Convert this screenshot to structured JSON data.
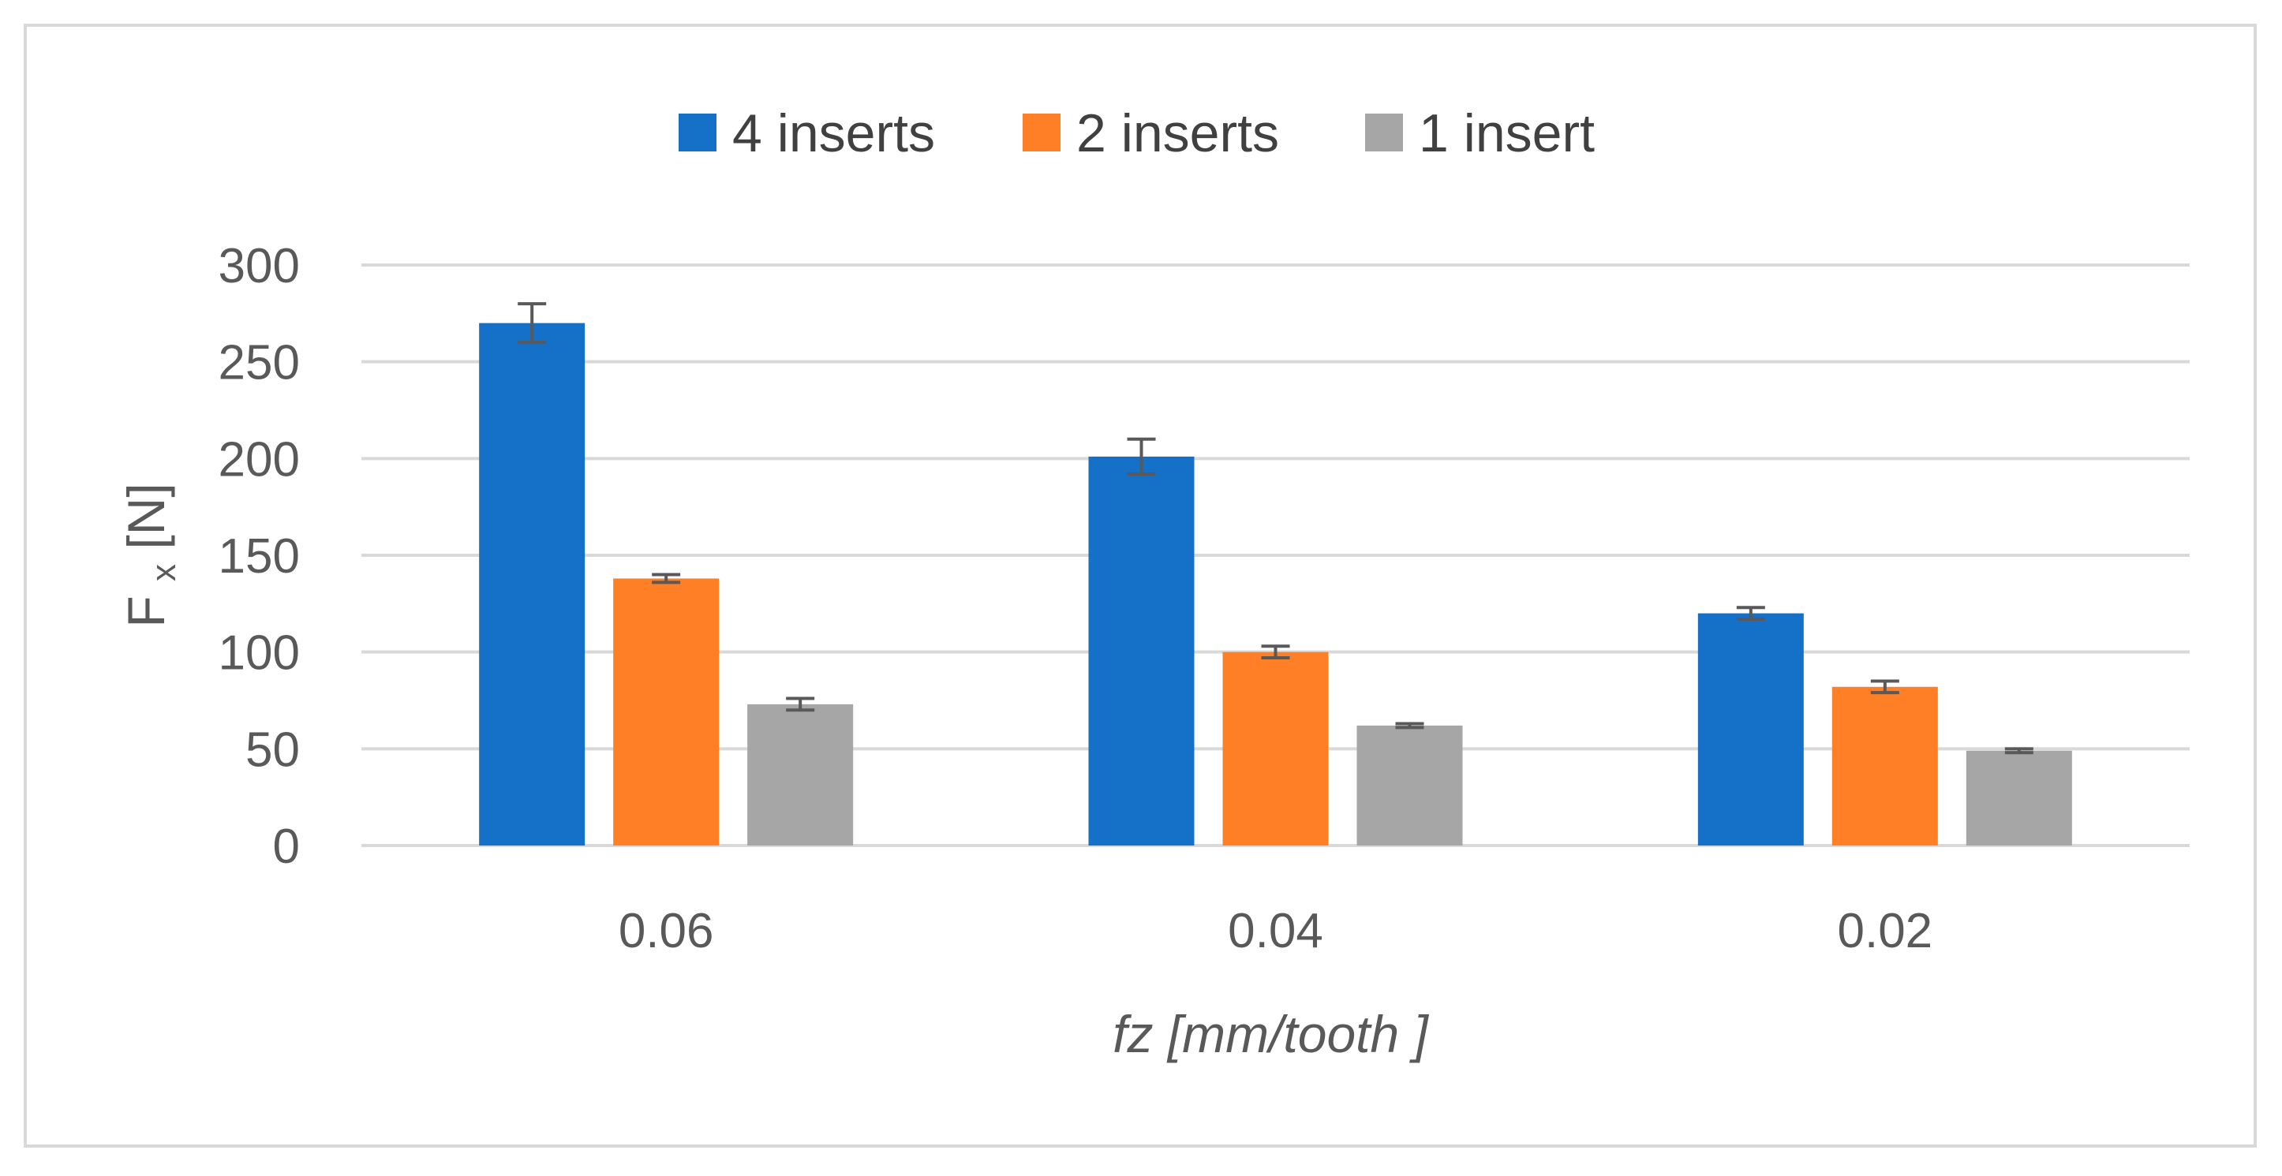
{
  "chart_data": {
    "type": "bar",
    "categories": [
      "0.06",
      "0.04",
      "0.02"
    ],
    "series": [
      {
        "name": "4 inserts",
        "color": "#1570c8",
        "values": [
          270,
          201,
          120
        ],
        "errors": [
          10,
          9,
          3
        ]
      },
      {
        "name": "2 inserts",
        "color": "#fe7f26",
        "values": [
          138,
          100,
          82
        ],
        "errors": [
          2,
          3,
          3
        ]
      },
      {
        "name": "1 insert",
        "color": "#a6a6a6",
        "values": [
          73,
          62,
          49
        ],
        "errors": [
          3,
          1,
          1
        ]
      }
    ],
    "xlabel": "fz [mm/tooth ]",
    "ylabel_main": "F",
    "ylabel_sub": "x",
    "ylabel_unit": " [N]",
    "ylim": [
      0,
      300
    ],
    "yticks": [
      0,
      50,
      100,
      150,
      200,
      250,
      300
    ],
    "grid": true,
    "legend_position": "top",
    "colors": {
      "grid": "#d9d9d9",
      "error_bar": "#595959",
      "border": "#d9d9d9"
    }
  }
}
